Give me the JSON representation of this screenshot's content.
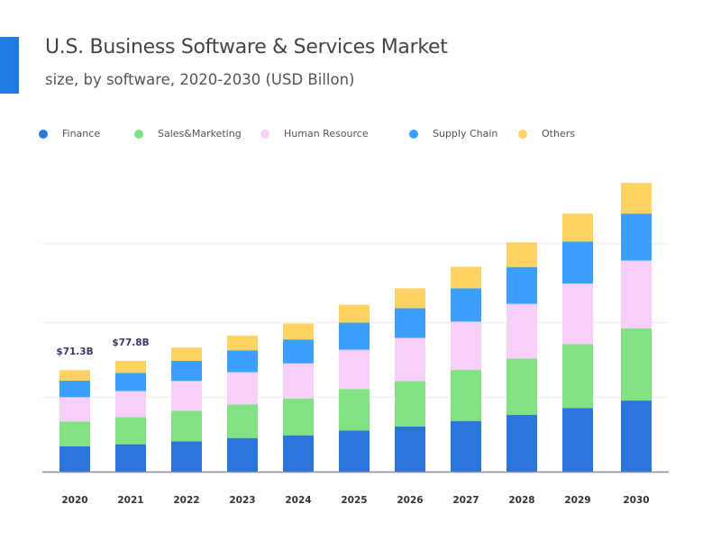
{
  "title": "U.S. Business Software & Services Market",
  "subtitle": "size, by software, 2020-2030 (USD Billon)",
  "chart_data": {
    "type": "bar",
    "stacked": true,
    "title": "U.S. Business Software & Services Market",
    "subtitle": "size, by software, 2020-2030 (USD Billon)",
    "xlabel": "",
    "ylabel": "",
    "categories": [
      "2020",
      "2021",
      "2022",
      "2023",
      "2024",
      "2025",
      "2026",
      "2027",
      "2028",
      "2029",
      "2030"
    ],
    "series": [
      {
        "name": "Finance",
        "color": "#2a76db",
        "values": [
          17.7,
          19.2,
          21.3,
          23.6,
          25.5,
          28.9,
          31.6,
          35.6,
          39.8,
          44.7,
          49.9
        ]
      },
      {
        "name": "Sales&Marketing",
        "color": "#82e283",
        "values": [
          17.5,
          19.1,
          21.5,
          23.6,
          25.9,
          29.1,
          32.0,
          35.8,
          39.6,
          44.9,
          50.6
        ]
      },
      {
        "name": "Human Resource",
        "color": "#f8cff9",
        "values": [
          17.1,
          18.3,
          20.9,
          22.6,
          24.6,
          27.6,
          30.3,
          33.9,
          38.4,
          42.5,
          47.7
        ]
      },
      {
        "name": "Supply Chain",
        "color": "#3aa0fb",
        "values": [
          11.6,
          12.8,
          14.1,
          15.4,
          16.8,
          19.0,
          20.9,
          23.4,
          25.9,
          29.5,
          32.9
        ]
      },
      {
        "name": "Others",
        "color": "#fed263",
        "values": [
          7.4,
          8.4,
          9.3,
          10.3,
          11.2,
          12.6,
          13.9,
          15.2,
          17.3,
          19.6,
          21.7
        ]
      }
    ],
    "data_labels": [
      {
        "category": "2020",
        "text": "$71.3B"
      },
      {
        "category": "2021",
        "text": "$77.8B"
      }
    ],
    "ylim": [
      0,
      215
    ],
    "grid": true,
    "y_axis_labels": false,
    "legend_placement": "top"
  },
  "colors": {
    "accent": "#1e7be0",
    "axis": "#8a8aa8",
    "grid": "#ececec"
  }
}
